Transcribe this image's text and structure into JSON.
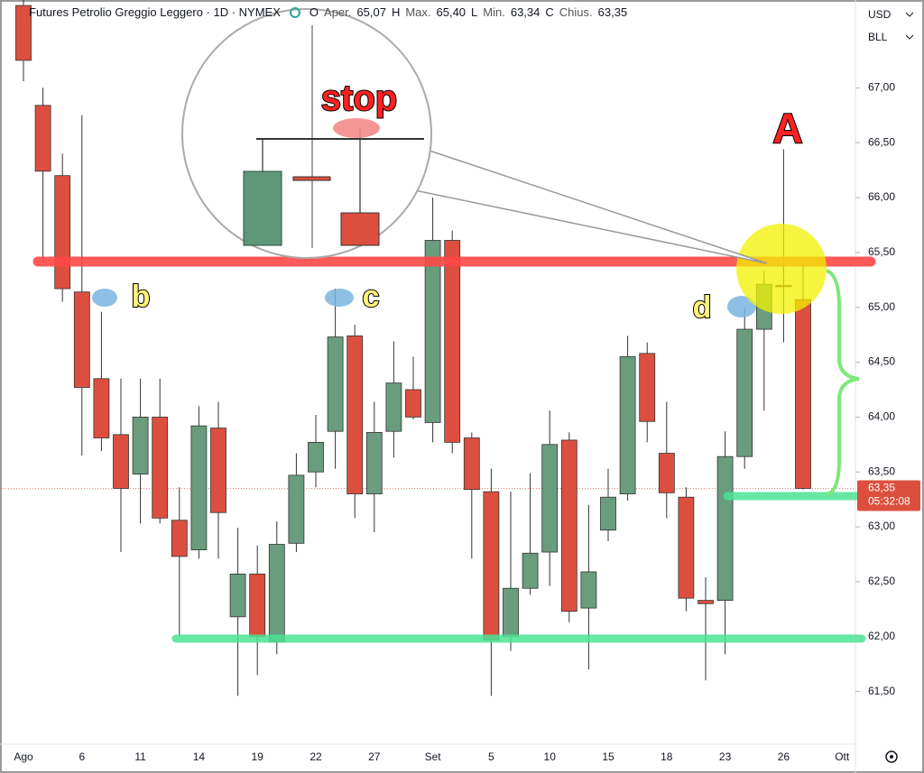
{
  "chart_data": {
    "type": "candlestick",
    "title": "Futures Petrolio Greggio Leggero · 1D · NYMEX",
    "ohlc_legend": [
      {
        "key": "O",
        "name": "Aper.",
        "value": "65,07"
      },
      {
        "key": "H",
        "name": "Max.",
        "value": "65,40"
      },
      {
        "key": "L",
        "name": "Min.",
        "value": "63,34"
      },
      {
        "key": "C",
        "name": "Chius.",
        "value": "63,35"
      }
    ],
    "currency": "USD",
    "unit": "BLL",
    "categories": [
      "Ago",
      null,
      null,
      "6",
      null,
      null,
      "11",
      null,
      null,
      "14",
      null,
      null,
      "19",
      null,
      null,
      "22",
      null,
      null,
      "27",
      null,
      null,
      "Set",
      null,
      null,
      "5",
      null,
      null,
      "10",
      null,
      null,
      "15",
      null,
      null,
      "18",
      null,
      null,
      "23",
      null,
      null,
      "26",
      null,
      null,
      "Ott"
    ],
    "open": [
      67.75,
      66.84,
      66.2,
      65.14,
      64.35,
      63.84,
      63.48,
      64.0,
      63.06,
      62.79,
      63.9,
      62.18,
      62.57,
      61.95,
      62.85,
      63.5,
      63.87,
      64.74,
      63.3,
      63.87,
      64.25,
      63.95,
      65.61,
      63.81,
      63.32,
      62.0,
      62.44,
      62.77,
      63.79,
      62.26,
      62.97,
      63.3,
      64.58,
      63.67,
      63.27,
      62.33,
      62.33,
      63.64,
      64.8,
      65.2,
      65.07,
      null,
      null
    ],
    "high": [
      67.8,
      67.0,
      66.4,
      66.75,
      64.96,
      64.35,
      64.35,
      64.35,
      63.36,
      64.1,
      64.14,
      62.99,
      62.83,
      63.05,
      63.67,
      64.02,
      65.17,
      64.84,
      64.14,
      64.69,
      64.55,
      66.0,
      65.7,
      63.86,
      63.53,
      63.32,
      63.49,
      64.06,
      63.86,
      63.2,
      63.53,
      64.74,
      64.68,
      64.14,
      63.36,
      62.54,
      63.87,
      65.0,
      65.33,
      66.44,
      65.4,
      null,
      null
    ],
    "low": [
      67.06,
      65.42,
      65.05,
      63.65,
      63.69,
      62.77,
      63.03,
      63.03,
      62.0,
      62.71,
      62.71,
      61.46,
      61.65,
      61.84,
      62.77,
      63.36,
      63.53,
      63.08,
      62.95,
      63.63,
      63.98,
      63.77,
      63.67,
      62.71,
      61.46,
      61.87,
      62.38,
      62.46,
      62.13,
      61.7,
      62.87,
      63.24,
      63.77,
      63.08,
      62.23,
      61.6,
      61.84,
      63.53,
      64.06,
      64.68,
      63.34,
      null,
      null
    ],
    "close": [
      67.25,
      66.24,
      65.17,
      64.27,
      63.81,
      63.35,
      64.0,
      63.08,
      62.73,
      63.92,
      63.13,
      62.57,
      62.0,
      62.84,
      63.47,
      63.77,
      64.73,
      63.3,
      63.86,
      64.31,
      64.0,
      65.61,
      63.77,
      63.34,
      61.97,
      62.44,
      62.76,
      63.75,
      62.23,
      62.59,
      63.27,
      64.55,
      63.96,
      63.31,
      62.35,
      62.3,
      63.64,
      64.8,
      65.21,
      65.19,
      63.35,
      null,
      null
    ],
    "up_color": "#6a9c7e",
    "down_color": "#dc4f3f",
    "ylim": [
      61.02,
      67.8
    ],
    "yticks": [
      {
        "value": 61.5,
        "label": "61,50"
      },
      {
        "value": 62.0,
        "label": "62,00"
      },
      {
        "value": 62.5,
        "label": "62,50"
      },
      {
        "value": 63.0,
        "label": "63,00"
      },
      {
        "value": 63.5,
        "label": "63,50"
      },
      {
        "value": 64.0,
        "label": "64,00"
      },
      {
        "value": 64.5,
        "label": "64,50"
      },
      {
        "value": 65.0,
        "label": "65,00"
      },
      {
        "value": 65.5,
        "label": "65,50"
      },
      {
        "value": 66.0,
        "label": "66,00"
      },
      {
        "value": 66.5,
        "label": "66,50"
      },
      {
        "value": 67.0,
        "label": "67,00"
      }
    ],
    "grid": false,
    "last_price": {
      "value": 63.35,
      "label": "63,35",
      "color": "#dc4f3f"
    },
    "countdown": "05:32:08",
    "annotations": [
      "stop",
      "A",
      "b",
      "c",
      "d"
    ]
  }
}
